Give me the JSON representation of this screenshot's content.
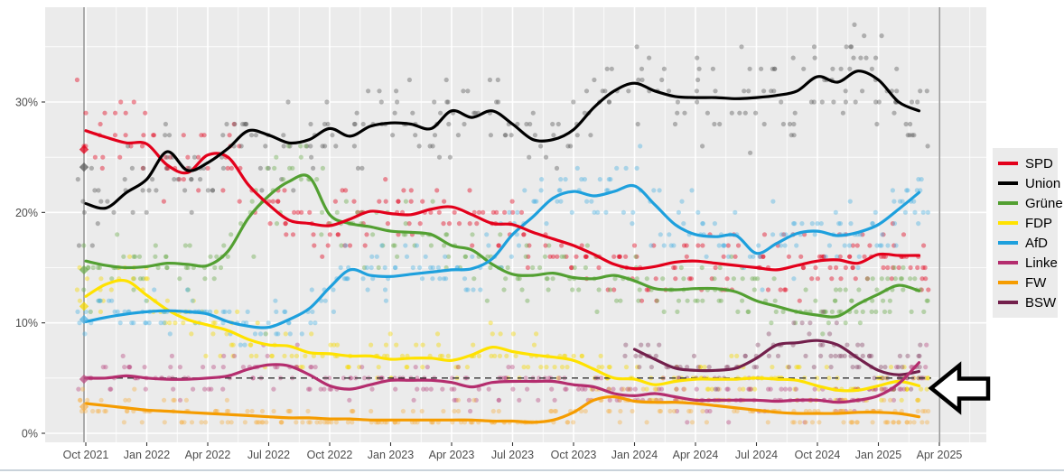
{
  "page": {
    "background": "#ffffff",
    "panel_background": "#ebebeb",
    "grid_color": "#ffffff",
    "axis_text_color": "#4d4d4d",
    "event_line_color": "#9b9b9b",
    "bottom_bar_color": "#c9d2da"
  },
  "legend": {
    "items": [
      {
        "label": "SPD",
        "color": "#e3001b"
      },
      {
        "label": "Union",
        "color": "#000000"
      },
      {
        "label": "Grüne",
        "color": "#53a032"
      },
      {
        "label": "FDP",
        "color": "#ffe200"
      },
      {
        "label": "AfD",
        "color": "#1ea0dd"
      },
      {
        "label": "Linke",
        "color": "#b42d6e"
      },
      {
        "label": "FW",
        "color": "#f59c00"
      },
      {
        "label": "BSW",
        "color": "#73204c"
      }
    ]
  },
  "chart_data": {
    "type": "scatter+line poll trend",
    "title": "",
    "xlabel": "",
    "ylabel": "",
    "x_start_month": "Oct 2021",
    "x_months": 42,
    "x_tick_labels": [
      "Oct 2021",
      "Jan 2022",
      "Apr 2022",
      "Jul 2022",
      "Oct 2022",
      "Jan 2023",
      "Apr 2023",
      "Jul 2023",
      "Oct 2023",
      "Jan 2024",
      "Apr 2024",
      "Jul 2024",
      "Oct 2024",
      "Jan 2025",
      "Apr 2025"
    ],
    "y_tick_labels": [
      "0%",
      "10%",
      "20%",
      "30%"
    ],
    "y_major_pct": [
      0,
      10,
      20,
      30
    ],
    "y_minor_pct": [
      5,
      15,
      25,
      35
    ],
    "ylim": [
      0,
      38.5
    ],
    "grid": true,
    "legend_position": "right",
    "threshold_line_pct": 5,
    "vertical_event_lines_month_index": [
      0,
      42.1
    ],
    "election_2021_markers": [
      {
        "party": "SPD",
        "result_pct": 25.7
      },
      {
        "party": "Union",
        "result_pct": 24.1
      },
      {
        "party": "Grüne",
        "result_pct": 14.8
      },
      {
        "party": "FDP",
        "result_pct": 11.5
      },
      {
        "party": "AfD",
        "result_pct": 10.3
      },
      {
        "party": "Linke",
        "result_pct": 4.9
      },
      {
        "party": "FW",
        "result_pct": 2.4
      }
    ],
    "series": [
      {
        "name": "SPD",
        "color": "#e3001b",
        "dot_color": "#e3001b",
        "values": [
          27.4,
          26.8,
          26.3,
          26.2,
          24.3,
          23.6,
          25.2,
          25.0,
          22.5,
          20.7,
          19.3,
          19.0,
          18.8,
          19.4,
          20.1,
          19.9,
          19.8,
          20.3,
          20.5,
          19.8,
          19.0,
          18.9,
          18.2,
          17.6,
          17.0,
          16.2,
          15.3,
          14.9,
          15.1,
          15.5,
          15.6,
          15.4,
          15.2,
          15.0,
          14.8,
          15.2,
          15.6,
          15.7,
          15.4,
          16.2,
          16.1,
          16.1
        ]
      },
      {
        "name": "Union",
        "color": "#000000",
        "dot_color": "#5a5a5a",
        "values": [
          20.8,
          20.4,
          21.8,
          23.0,
          25.5,
          23.8,
          24.5,
          25.8,
          27.4,
          27.0,
          26.3,
          26.6,
          27.6,
          26.9,
          27.8,
          28.1,
          28.0,
          27.6,
          29.2,
          28.6,
          29.2,
          28.0,
          26.6,
          26.6,
          27.5,
          29.5,
          31.0,
          31.7,
          31.0,
          30.5,
          30.4,
          30.4,
          30.3,
          30.4,
          30.6,
          31.0,
          32.3,
          31.8,
          32.8,
          32.0,
          30.0,
          29.2
        ]
      },
      {
        "name": "Grüne",
        "color": "#53a032",
        "dot_color": "#6cab4c",
        "values": [
          15.6,
          15.2,
          15.0,
          15.1,
          15.4,
          15.3,
          15.2,
          16.5,
          19.5,
          21.5,
          22.8,
          23.2,
          19.8,
          19.0,
          18.7,
          18.3,
          18.2,
          18.0,
          17.0,
          16.6,
          15.3,
          14.4,
          14.3,
          14.5,
          14.1,
          14.0,
          14.3,
          13.8,
          13.1,
          13.0,
          13.1,
          13.1,
          12.8,
          12.0,
          11.5,
          11.0,
          10.7,
          10.6,
          11.7,
          12.6,
          13.4,
          12.9
        ]
      },
      {
        "name": "FDP",
        "color": "#ffe200",
        "dot_color": "#f5d800",
        "values": [
          12.4,
          13.5,
          13.8,
          12.5,
          11.2,
          10.3,
          9.8,
          9.3,
          8.5,
          8.0,
          7.9,
          7.3,
          7.2,
          7.0,
          7.0,
          6.7,
          6.8,
          6.8,
          6.6,
          7.1,
          7.8,
          7.4,
          7.1,
          6.9,
          6.6,
          5.8,
          5.0,
          4.9,
          4.4,
          4.7,
          4.9,
          4.9,
          4.9,
          5.0,
          4.9,
          4.8,
          4.3,
          3.9,
          3.9,
          4.3,
          4.7,
          4.3
        ]
      },
      {
        "name": "AfD",
        "color": "#1ea0dd",
        "dot_color": "#4fb2e3",
        "values": [
          10.1,
          10.5,
          10.8,
          11.0,
          11.1,
          11.0,
          10.8,
          10.1,
          9.7,
          9.6,
          10.3,
          11.3,
          13.2,
          14.8,
          14.3,
          14.2,
          14.4,
          14.6,
          14.8,
          14.9,
          15.8,
          18.0,
          19.6,
          21.3,
          21.9,
          21.5,
          21.9,
          22.4,
          20.7,
          18.9,
          18.0,
          17.8,
          17.9,
          16.3,
          17.2,
          18.1,
          18.3,
          17.9,
          18.2,
          18.9,
          20.3,
          21.8
        ]
      },
      {
        "name": "Linke",
        "color": "#b42d6e",
        "dot_color": "#bb4d83",
        "values": [
          5.0,
          5.0,
          5.2,
          5.0,
          4.9,
          4.9,
          5.0,
          5.2,
          5.8,
          6.2,
          6.1,
          5.3,
          4.3,
          4.0,
          4.4,
          4.8,
          4.8,
          4.8,
          4.6,
          4.2,
          4.6,
          4.7,
          4.7,
          4.7,
          4.4,
          4.2,
          3.6,
          3.4,
          3.6,
          3.3,
          3.0,
          3.0,
          3.0,
          3.0,
          2.9,
          3.0,
          3.0,
          2.8,
          3.0,
          3.4,
          4.5,
          6.4
        ]
      },
      {
        "name": "FW",
        "color": "#f59c00",
        "dot_color": "#f5b24d",
        "values": [
          2.7,
          2.5,
          2.3,
          2.1,
          2.0,
          1.9,
          1.8,
          1.7,
          1.6,
          1.5,
          1.4,
          1.4,
          1.3,
          1.3,
          1.2,
          1.2,
          1.2,
          1.2,
          1.2,
          1.2,
          1.1,
          1.1,
          1.0,
          1.2,
          1.9,
          3.0,
          3.3,
          2.9,
          2.8,
          2.8,
          2.7,
          2.5,
          2.3,
          2.1,
          1.9,
          1.8,
          1.8,
          1.8,
          1.9,
          1.9,
          1.8,
          1.5
        ]
      },
      {
        "name": "BSW",
        "color": "#73204c",
        "dot_color": "#8a4a6b",
        "values": [
          null,
          null,
          null,
          null,
          null,
          null,
          null,
          null,
          null,
          null,
          null,
          null,
          null,
          null,
          null,
          null,
          null,
          null,
          null,
          null,
          null,
          null,
          null,
          null,
          null,
          null,
          null,
          7.6,
          6.7,
          5.9,
          5.7,
          5.7,
          5.9,
          6.8,
          8.0,
          8.2,
          8.4,
          8.0,
          6.8,
          5.7,
          5.3,
          5.6
        ]
      }
    ],
    "annotations": [
      {
        "type": "arrow-left",
        "points_at_pct": 5,
        "description_visible_text": ""
      }
    ]
  }
}
